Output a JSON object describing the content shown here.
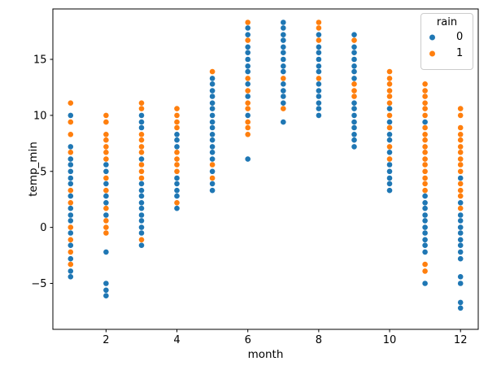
{
  "chart_data": {
    "type": "scatter",
    "title": "",
    "xlabel": "month",
    "ylabel": "temp_min",
    "x_ticks": [
      2,
      4,
      6,
      8,
      10,
      12
    ],
    "y_ticks": [
      -5,
      0,
      5,
      10,
      15
    ],
    "xlim": [
      0.5,
      12.5
    ],
    "ylim": [
      -9.1,
      19.5
    ],
    "grid": false,
    "marker_diameter_px": 6.6,
    "legend": {
      "title": "rain",
      "position": "upper right",
      "entries": [
        {
          "label": "0",
          "color": "#1f77b4"
        },
        {
          "label": "1",
          "color": "#ff7f0e"
        }
      ]
    },
    "series": [
      {
        "name": "0",
        "color": "#1f77b4",
        "points": [
          [
            1,
            10.0
          ],
          [
            1,
            7.2
          ],
          [
            1,
            6.1
          ],
          [
            1,
            5.6
          ],
          [
            1,
            5.0
          ],
          [
            1,
            4.4
          ],
          [
            1,
            3.9
          ],
          [
            1,
            2.8
          ],
          [
            1,
            1.7
          ],
          [
            1,
            1.1
          ],
          [
            1,
            0.6
          ],
          [
            1,
            -0.5
          ],
          [
            1,
            -1.6
          ],
          [
            1,
            -2.8
          ],
          [
            1,
            -3.9
          ],
          [
            1,
            -4.4
          ],
          [
            2,
            5.6
          ],
          [
            2,
            5.0
          ],
          [
            2,
            3.9
          ],
          [
            2,
            2.8
          ],
          [
            2,
            2.2
          ],
          [
            2,
            1.1
          ],
          [
            2,
            -2.2
          ],
          [
            2,
            -5.0
          ],
          [
            2,
            -5.6
          ],
          [
            2,
            -6.1
          ],
          [
            3,
            10.0
          ],
          [
            3,
            9.4
          ],
          [
            3,
            8.9
          ],
          [
            3,
            6.1
          ],
          [
            3,
            3.9
          ],
          [
            3,
            3.3
          ],
          [
            3,
            2.8
          ],
          [
            3,
            2.2
          ],
          [
            3,
            1.7
          ],
          [
            3,
            1.1
          ],
          [
            3,
            0.6
          ],
          [
            3,
            0.0
          ],
          [
            3,
            -0.5
          ],
          [
            3,
            -1.6
          ],
          [
            4,
            8.3
          ],
          [
            4,
            7.8
          ],
          [
            4,
            7.2
          ],
          [
            4,
            4.4
          ],
          [
            4,
            3.9
          ],
          [
            4,
            3.3
          ],
          [
            4,
            2.8
          ],
          [
            4,
            1.7
          ],
          [
            5,
            13.3
          ],
          [
            5,
            12.8
          ],
          [
            5,
            12.2
          ],
          [
            5,
            11.7
          ],
          [
            5,
            11.1
          ],
          [
            5,
            10.6
          ],
          [
            5,
            10.0
          ],
          [
            5,
            9.4
          ],
          [
            5,
            8.9
          ],
          [
            5,
            8.3
          ],
          [
            5,
            7.8
          ],
          [
            5,
            7.2
          ],
          [
            5,
            6.7
          ],
          [
            5,
            6.1
          ],
          [
            5,
            5.0
          ],
          [
            5,
            3.9
          ],
          [
            5,
            3.3
          ],
          [
            6,
            17.8
          ],
          [
            6,
            17.2
          ],
          [
            6,
            16.1
          ],
          [
            6,
            15.6
          ],
          [
            6,
            15.0
          ],
          [
            6,
            14.4
          ],
          [
            6,
            13.9
          ],
          [
            6,
            12.8
          ],
          [
            6,
            11.7
          ],
          [
            6,
            10.0
          ],
          [
            6,
            6.1
          ],
          [
            7,
            18.3
          ],
          [
            7,
            17.8
          ],
          [
            7,
            17.2
          ],
          [
            7,
            16.7
          ],
          [
            7,
            16.1
          ],
          [
            7,
            15.6
          ],
          [
            7,
            15.0
          ],
          [
            7,
            14.4
          ],
          [
            7,
            13.9
          ],
          [
            7,
            12.8
          ],
          [
            7,
            12.2
          ],
          [
            7,
            11.7
          ],
          [
            7,
            11.1
          ],
          [
            7,
            9.4
          ],
          [
            8,
            17.2
          ],
          [
            8,
            16.1
          ],
          [
            8,
            15.6
          ],
          [
            8,
            15.0
          ],
          [
            8,
            14.4
          ],
          [
            8,
            13.9
          ],
          [
            8,
            12.8
          ],
          [
            8,
            12.2
          ],
          [
            8,
            11.7
          ],
          [
            8,
            11.1
          ],
          [
            8,
            10.6
          ],
          [
            8,
            10.0
          ],
          [
            9,
            17.2
          ],
          [
            9,
            16.1
          ],
          [
            9,
            15.6
          ],
          [
            9,
            15.0
          ],
          [
            9,
            14.4
          ],
          [
            9,
            13.9
          ],
          [
            9,
            13.3
          ],
          [
            9,
            11.1
          ],
          [
            9,
            10.6
          ],
          [
            9,
            10.0
          ],
          [
            9,
            9.4
          ],
          [
            9,
            8.9
          ],
          [
            9,
            8.3
          ],
          [
            9,
            7.8
          ],
          [
            9,
            7.2
          ],
          [
            10,
            10.6
          ],
          [
            10,
            9.4
          ],
          [
            10,
            8.3
          ],
          [
            10,
            7.8
          ],
          [
            10,
            6.7
          ],
          [
            10,
            5.6
          ],
          [
            10,
            5.0
          ],
          [
            10,
            4.4
          ],
          [
            10,
            3.9
          ],
          [
            10,
            3.3
          ],
          [
            11,
            9.4
          ],
          [
            11,
            2.8
          ],
          [
            11,
            2.2
          ],
          [
            11,
            1.7
          ],
          [
            11,
            1.1
          ],
          [
            11,
            0.6
          ],
          [
            11,
            0.0
          ],
          [
            11,
            -0.5
          ],
          [
            11,
            -1.1
          ],
          [
            11,
            -1.6
          ],
          [
            11,
            -2.2
          ],
          [
            11,
            -5.0
          ],
          [
            12,
            4.4
          ],
          [
            12,
            2.2
          ],
          [
            12,
            1.1
          ],
          [
            12,
            0.6
          ],
          [
            12,
            0.0
          ],
          [
            12,
            -0.5
          ],
          [
            12,
            -1.1
          ],
          [
            12,
            -1.6
          ],
          [
            12,
            -2.2
          ],
          [
            12,
            -2.8
          ],
          [
            12,
            -4.4
          ],
          [
            12,
            -5.0
          ],
          [
            12,
            -6.7
          ],
          [
            12,
            -7.2
          ]
        ]
      },
      {
        "name": "1",
        "color": "#ff7f0e",
        "points": [
          [
            1,
            11.1
          ],
          [
            1,
            9.4
          ],
          [
            1,
            8.3
          ],
          [
            1,
            6.7
          ],
          [
            1,
            3.3
          ],
          [
            1,
            2.2
          ],
          [
            1,
            0.0
          ],
          [
            1,
            -1.1
          ],
          [
            1,
            -2.2
          ],
          [
            1,
            -3.3
          ],
          [
            2,
            10.0
          ],
          [
            2,
            9.4
          ],
          [
            2,
            8.3
          ],
          [
            2,
            7.8
          ],
          [
            2,
            7.2
          ],
          [
            2,
            6.7
          ],
          [
            2,
            6.1
          ],
          [
            2,
            4.4
          ],
          [
            2,
            3.3
          ],
          [
            2,
            1.7
          ],
          [
            2,
            0.6
          ],
          [
            2,
            0.0
          ],
          [
            2,
            -0.5
          ],
          [
            3,
            11.1
          ],
          [
            3,
            10.6
          ],
          [
            3,
            8.3
          ],
          [
            3,
            7.8
          ],
          [
            3,
            7.2
          ],
          [
            3,
            6.7
          ],
          [
            3,
            5.6
          ],
          [
            3,
            5.0
          ],
          [
            3,
            4.4
          ],
          [
            3,
            -1.1
          ],
          [
            4,
            10.6
          ],
          [
            4,
            10.0
          ],
          [
            4,
            9.4
          ],
          [
            4,
            8.9
          ],
          [
            4,
            6.7
          ],
          [
            4,
            6.1
          ],
          [
            4,
            5.6
          ],
          [
            4,
            5.0
          ],
          [
            4,
            2.2
          ],
          [
            5,
            13.9
          ],
          [
            5,
            5.6
          ],
          [
            5,
            4.4
          ],
          [
            6,
            18.3
          ],
          [
            6,
            16.7
          ],
          [
            6,
            13.3
          ],
          [
            6,
            12.2
          ],
          [
            6,
            11.1
          ],
          [
            6,
            10.6
          ],
          [
            6,
            9.4
          ],
          [
            6,
            8.9
          ],
          [
            6,
            8.3
          ],
          [
            7,
            13.3
          ],
          [
            7,
            10.6
          ],
          [
            8,
            18.3
          ],
          [
            8,
            17.8
          ],
          [
            8,
            16.7
          ],
          [
            8,
            13.3
          ],
          [
            9,
            16.7
          ],
          [
            9,
            12.8
          ],
          [
            9,
            12.2
          ],
          [
            9,
            11.7
          ],
          [
            10,
            13.9
          ],
          [
            10,
            13.3
          ],
          [
            10,
            12.8
          ],
          [
            10,
            12.2
          ],
          [
            10,
            11.7
          ],
          [
            10,
            11.1
          ],
          [
            10,
            10.0
          ],
          [
            10,
            8.9
          ],
          [
            10,
            7.2
          ],
          [
            10,
            6.1
          ],
          [
            11,
            12.8
          ],
          [
            11,
            12.2
          ],
          [
            11,
            11.7
          ],
          [
            11,
            11.1
          ],
          [
            11,
            10.6
          ],
          [
            11,
            10.0
          ],
          [
            11,
            8.9
          ],
          [
            11,
            8.3
          ],
          [
            11,
            7.8
          ],
          [
            11,
            7.2
          ],
          [
            11,
            6.7
          ],
          [
            11,
            6.1
          ],
          [
            11,
            5.6
          ],
          [
            11,
            5.0
          ],
          [
            11,
            4.4
          ],
          [
            11,
            3.9
          ],
          [
            11,
            3.3
          ],
          [
            11,
            -3.3
          ],
          [
            11,
            -3.9
          ],
          [
            12,
            10.6
          ],
          [
            12,
            10.0
          ],
          [
            12,
            8.9
          ],
          [
            12,
            8.3
          ],
          [
            12,
            7.8
          ],
          [
            12,
            7.2
          ],
          [
            12,
            6.7
          ],
          [
            12,
            6.1
          ],
          [
            12,
            5.6
          ],
          [
            12,
            5.0
          ],
          [
            12,
            3.9
          ],
          [
            12,
            3.3
          ],
          [
            12,
            2.8
          ],
          [
            12,
            1.7
          ]
        ]
      }
    ]
  }
}
